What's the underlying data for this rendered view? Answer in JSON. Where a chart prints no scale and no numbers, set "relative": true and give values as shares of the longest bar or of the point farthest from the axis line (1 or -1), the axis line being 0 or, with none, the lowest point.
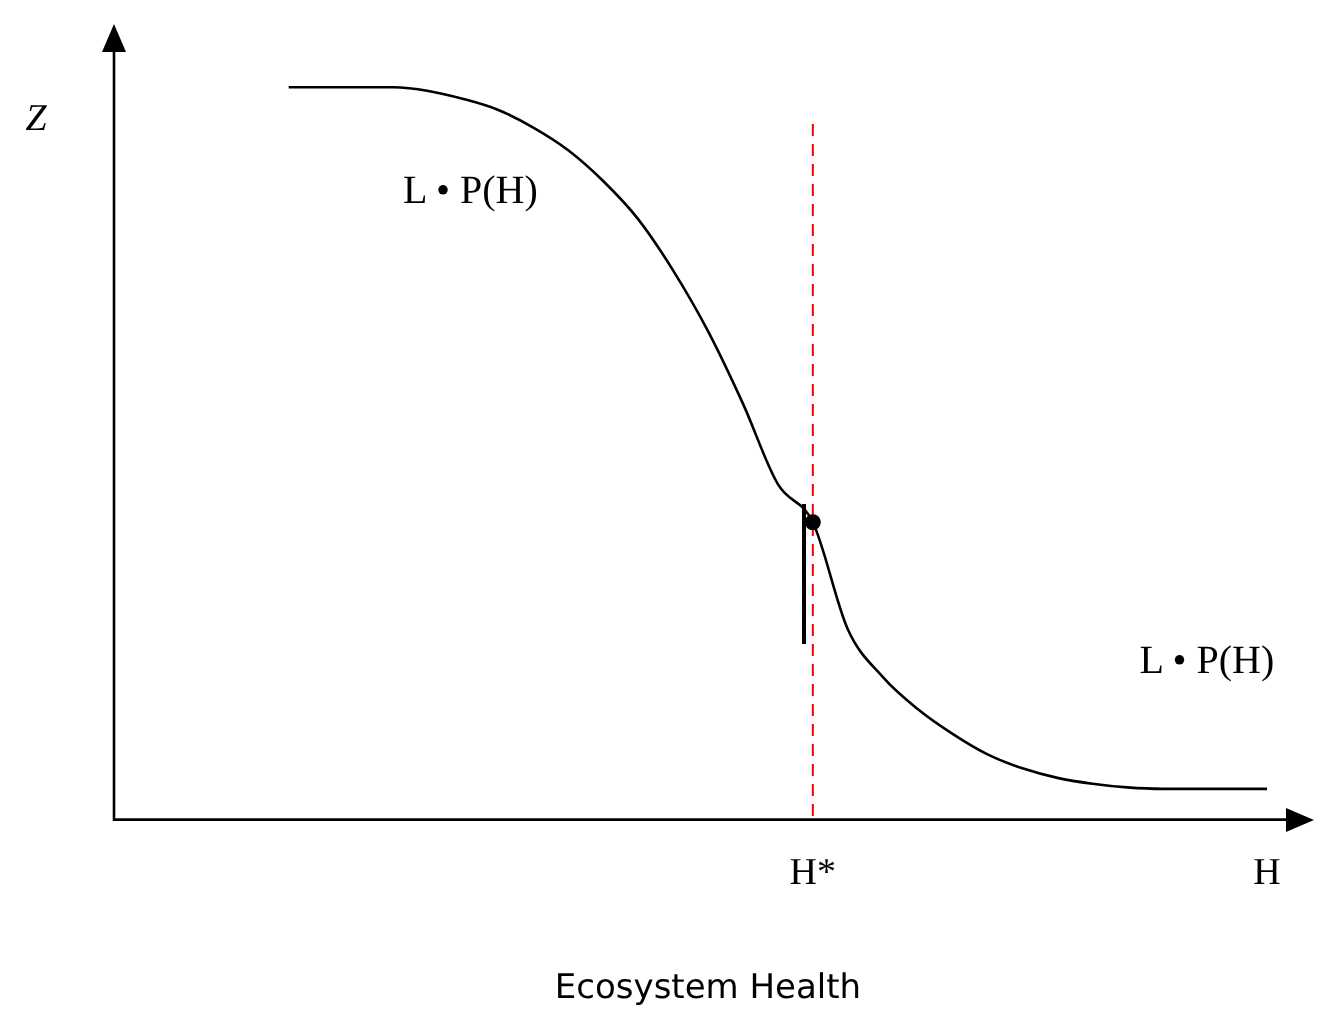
{
  "chart_data": {
    "type": "line",
    "relative": true,
    "xlabel": "Ecosystem Health",
    "ylabel": "Z",
    "categories": [
      null,
      null,
      null,
      null,
      null,
      null,
      null,
      null,
      null,
      null,
      null,
      null,
      null,
      null,
      null,
      null,
      null,
      null,
      null,
      null,
      "H*",
      null,
      null,
      null,
      null,
      null,
      null,
      null,
      null,
      null,
      null,
      null,
      null,
      "H",
      null
    ],
    "series": [
      {
        "type": "line",
        "color": "#000000",
        "marker": "none",
        "values": [
          null,
          null,
          null,
          null,
          null,
          1.0,
          1.0,
          1.0,
          1.0,
          0.995,
          0.984,
          0.969,
          0.945,
          0.914,
          0.872,
          0.82,
          0.75,
          0.667,
          0.568,
          0.458,
          0.406,
          0.26,
          0.195,
          0.151,
          0.117,
          0.089,
          0.07,
          0.057,
          0.049,
          0.044,
          0.042,
          0.042,
          0.042,
          0.042,
          null
        ]
      },
      {
        "type": "scatter",
        "color": "#000000",
        "marker": "circle",
        "x": [
          "H*"
        ],
        "values": [
          0.406
        ]
      }
    ],
    "ref_lines": [
      {
        "axis": "x",
        "value": "H*",
        "color": "#ff0000",
        "line_style": "dashed"
      }
    ],
    "annotations": [
      "L • P(H)",
      "L • P(H)"
    ],
    "legend": false,
    "grid": false
  }
}
